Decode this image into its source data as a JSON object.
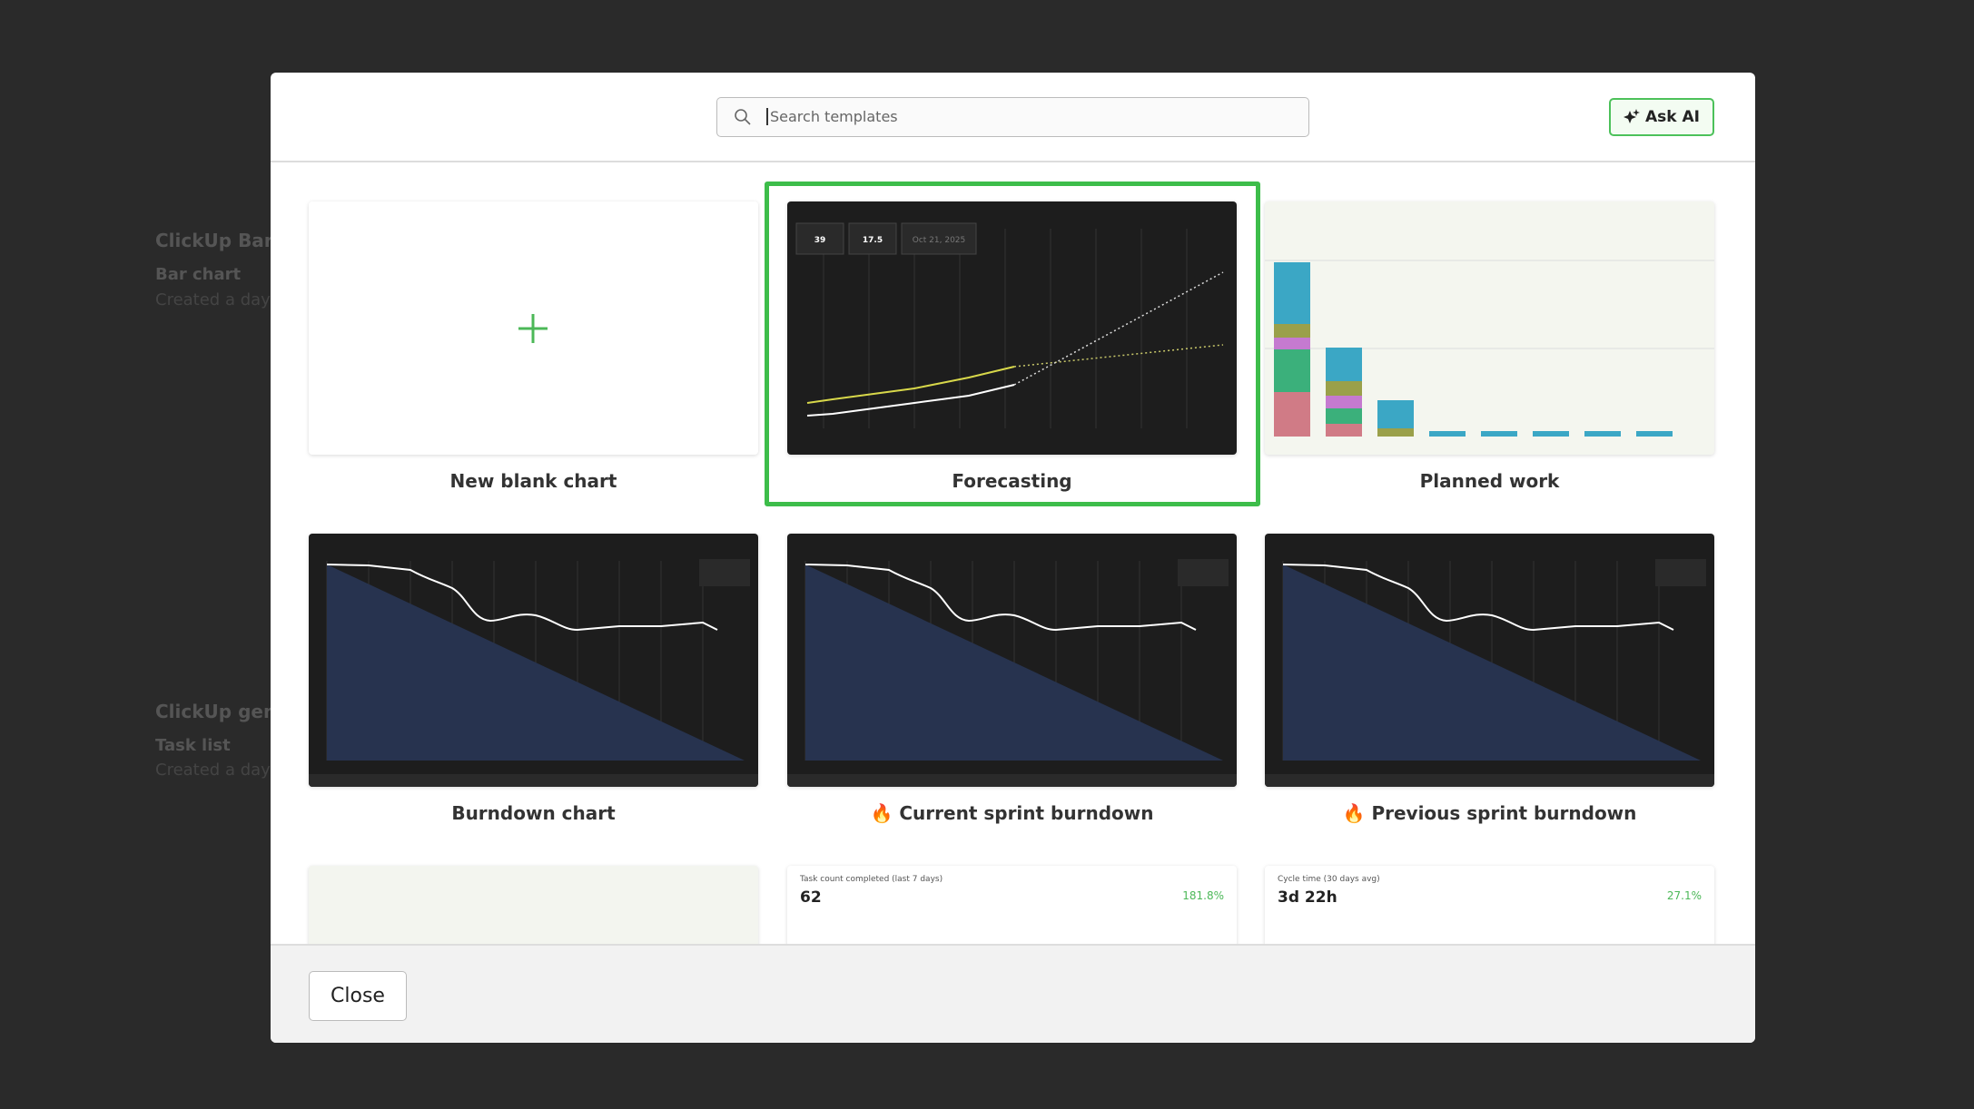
{
  "background": {
    "items": [
      "ClickUp Bar c",
      "Bar chart",
      "Created a day",
      "ClickUp gene",
      "Task list",
      "Created a day"
    ]
  },
  "search": {
    "placeholder": "Search templates"
  },
  "ask_ai": "Ask AI",
  "templates": [
    {
      "name": "New blank chart"
    },
    {
      "name": "Forecasting",
      "selected": true,
      "kpis": [
        "39",
        "17.5",
        "Oct 21, 2025"
      ]
    },
    {
      "name": "Planned work"
    },
    {
      "name": "Burndown chart"
    },
    {
      "name": "🔥 Current sprint burndown"
    },
    {
      "name": "🔥 Previous sprint burndown"
    }
  ],
  "partial_cards": [
    {
      "title": "Task count completed (last 7 days)",
      "value": "62",
      "change": "181.8%"
    },
    {
      "title": "Cycle time (30 days avg)",
      "value": "3d 22h",
      "change": "27.1%"
    }
  ],
  "close": "Close"
}
